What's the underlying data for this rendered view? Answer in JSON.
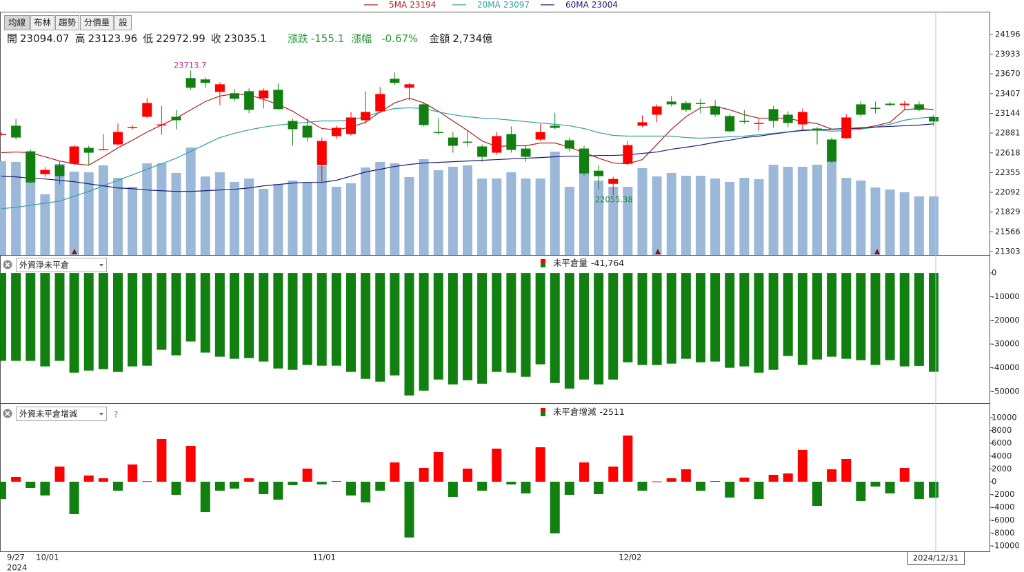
{
  "toolbar": {
    "buttons": [
      "均線",
      "布林",
      "趨勢",
      "分價量",
      "設"
    ]
  },
  "chart_data": [
    {
      "type": "candlestick",
      "categories": [
        "9/27",
        null,
        "10/01",
        null,
        null,
        null,
        null,
        null,
        null,
        null,
        null,
        null,
        null,
        null,
        null,
        null,
        null,
        null,
        null,
        null,
        null,
        "11/01",
        null,
        null,
        null,
        null,
        null,
        null,
        null,
        null,
        null,
        null,
        null,
        null,
        null,
        null,
        null,
        null,
        null,
        null,
        null,
        null,
        "12/02",
        null,
        null,
        null,
        null,
        null,
        null,
        null,
        null,
        null,
        null,
        null,
        null,
        null,
        null,
        null,
        null,
        null,
        null,
        null,
        null,
        null,
        "2024/12/31"
      ],
      "year": "2024",
      "open": [
        22860,
        22979,
        22638,
        22334,
        22454,
        22472,
        22684,
        22655,
        22730,
        22950,
        23098,
        22985,
        23098,
        23614,
        23596,
        23430,
        23412,
        23439,
        23346,
        23458,
        23043,
        22979,
        22454,
        22841,
        22868,
        23052,
        23172,
        23605,
        23485,
        23264,
        22896,
        22822,
        22767,
        22703,
        22620,
        22868,
        22675,
        22795,
        22979,
        22786,
        22675,
        22380,
        22205,
        22472,
        22979,
        23126,
        23301,
        23282,
        23282,
        23236,
        23108,
        23043,
        23006,
        23200,
        23126,
        22997,
        22942,
        22795,
        22813,
        23264,
        23218,
        23273,
        23255,
        23264,
        23094.07
      ],
      "high": [
        22890,
        23071,
        22666,
        22426,
        22500,
        22721,
        22712,
        22868,
        23006,
        22988,
        23347,
        23245,
        23190,
        23713.7,
        23623,
        23559,
        23467,
        23476,
        23476,
        23541,
        23071,
        23080,
        22822,
        22979,
        23163,
        23439,
        23494,
        23688,
        23550,
        23282,
        23080,
        22896,
        22924,
        22730,
        22896,
        22970,
        22712,
        23006,
        23153,
        22822,
        22712,
        22454,
        22298,
        22776,
        23117,
        23264,
        23375,
        23310,
        23338,
        23319,
        23135,
        23190,
        23080,
        23245,
        23172,
        23209,
        22960,
        22822,
        23135,
        23310,
        23301,
        23301,
        23310,
        23301,
        23123.96
      ],
      "low": [
        22850,
        22795,
        22215,
        22298,
        22196,
        22454,
        22454,
        22650,
        22712,
        22933,
        23080,
        22859,
        22933,
        23458,
        23485,
        23255,
        23301,
        23144,
        23209,
        23190,
        22712,
        22767,
        22224,
        22804,
        22850,
        23006,
        23144,
        23522,
        23319,
        22970,
        22859,
        22620,
        22703,
        22500,
        22592,
        22620,
        22500,
        22776,
        22933,
        22638,
        22316,
        22132,
        22055.38,
        22454,
        22960,
        23025,
        23236,
        23163,
        23144,
        23098,
        22887,
        23006,
        22914,
        22951,
        22960,
        22924,
        22730,
        22482,
        22804,
        23098,
        23144,
        23236,
        23190,
        23172,
        22972.99
      ],
      "close": [
        22870,
        22822,
        22224,
        22390,
        22307,
        22703,
        22620,
        22666,
        22896,
        22960,
        23282,
        22997,
        23052,
        23485,
        23550,
        23531,
        23338,
        23190,
        23448,
        23200,
        22933,
        22822,
        22776,
        22951,
        23089,
        23163,
        23402,
        23550,
        23531,
        22988,
        22887,
        22712,
        22758,
        22565,
        22841,
        22657,
        22565,
        22896,
        22951,
        22675,
        22344,
        22307,
        22270,
        22721,
        23025,
        23236,
        23264,
        23190,
        23273,
        23126,
        22905,
        23034,
        23016,
        23043,
        23016,
        23163,
        22914,
        22500,
        23089,
        23126,
        23209,
        23255,
        23273,
        23190.2,
        23035.1
      ],
      "volume": [
        4380,
        4347,
        4798,
        2834,
        4250,
        3896,
        3864,
        4186,
        3606,
        3188,
        4283,
        4283,
        3832,
        5023,
        3671,
        3864,
        3413,
        3574,
        3091,
        3317,
        3478,
        3413,
        4154,
        3188,
        3349,
        4089,
        4347,
        4283,
        3639,
        4476,
        3961,
        4122,
        4186,
        3574,
        3574,
        3864,
        3574,
        3574,
        4830,
        3188,
        3896,
        3478,
        3188,
        3188,
        4057,
        3671,
        3832,
        3703,
        3703,
        3574,
        3413,
        3606,
        3542,
        4218,
        4122,
        4122,
        4218,
        4508,
        3606,
        3478,
        3156,
        3059,
        2930,
        2737,
        2734
      ],
      "volume_color": "#9bb8d8",
      "up_color": "#ff0000",
      "down_color": "#118011",
      "series": [
        {
          "name": "5MA",
          "color": "#b01c1c",
          "values": [
            22620,
            22629,
            22620,
            22565,
            22509,
            22472,
            22454,
            22565,
            22684,
            22786,
            22896,
            22988,
            23080,
            23191,
            23301,
            23375,
            23403,
            23393,
            23329,
            23264,
            23172,
            23053,
            22942,
            22924,
            22961,
            23025,
            23163,
            23283,
            23347,
            23283,
            23172,
            23043,
            22915,
            22776,
            22703,
            22712,
            22712,
            22749,
            22749,
            22693,
            22620,
            22546,
            22482,
            22472,
            22528,
            22730,
            22933,
            23099,
            23218,
            23237,
            23191,
            23126,
            23080,
            23080,
            23080,
            23034,
            23007,
            22933,
            22942,
            22942,
            22979,
            23025,
            23191,
            23209,
            23194
          ]
        },
        {
          "name": "20MA",
          "color": "#2f9fa3",
          "values": [
            21874,
            21892,
            21920,
            21948,
            21975,
            22040,
            22104,
            22178,
            22252,
            22325,
            22399,
            22472,
            22546,
            22638,
            22730,
            22822,
            22878,
            22924,
            22961,
            22988,
            23007,
            23025,
            23043,
            23043,
            23053,
            23099,
            23163,
            23209,
            23218,
            23209,
            23163,
            23126,
            23099,
            23080,
            23071,
            23053,
            23034,
            23016,
            22998,
            22979,
            22942,
            22887,
            22850,
            22841,
            22841,
            22841,
            22841,
            22822,
            22813,
            22822,
            22832,
            22841,
            22859,
            22878,
            22896,
            22924,
            22924,
            22906,
            22915,
            22933,
            22961,
            22998,
            23053,
            23080,
            23097
          ]
        },
        {
          "name": "60MA",
          "color": "#1c1c78",
          "values": [
            22307,
            22298,
            22279,
            22270,
            22252,
            22233,
            22205,
            22178,
            22150,
            22141,
            22123,
            22113,
            22104,
            22104,
            22113,
            22123,
            22132,
            22150,
            22178,
            22196,
            22215,
            22224,
            22224,
            22252,
            22307,
            22362,
            22399,
            22436,
            22463,
            22482,
            22491,
            22500,
            22509,
            22518,
            22528,
            22537,
            22546,
            22555,
            22565,
            22574,
            22574,
            22583,
            22583,
            22592,
            22610,
            22629,
            22666,
            22693,
            22721,
            22758,
            22786,
            22822,
            22841,
            22868,
            22896,
            22915,
            22924,
            22933,
            22942,
            22951,
            22961,
            22970,
            22979,
            22988,
            23004
          ]
        }
      ],
      "ylim": [
        21257,
        24498
      ],
      "yticks": [
        24196,
        23933,
        23670,
        23407,
        23144,
        22881,
        22618,
        22355,
        22092,
        21829,
        21566,
        21303
      ],
      "summary": {
        "labels": [
          "開",
          "高",
          "低",
          "收",
          "漲跌",
          "漲幅",
          "金額"
        ],
        "change": -155.1,
        "change_pct": -0.67,
        "change_pct_label": "-0.67%",
        "amount": 2734,
        "amount_label": "2,734億"
      }
    },
    {
      "type": "bar",
      "selector": "外資淨未平倉",
      "legend": "未平倉量",
      "color": "#118011",
      "values": [
        -37135,
        -37135,
        -37135,
        -39474,
        -37135,
        -42106,
        -41228,
        -40643,
        -41813,
        -39474,
        -39182,
        -32459,
        -34798,
        -28950,
        -33628,
        -35382,
        -36260,
        -35967,
        -37428,
        -40351,
        -40936,
        -38890,
        -39182,
        -39182,
        -41813,
        -44737,
        -45906,
        -43275,
        -51755,
        -49708,
        -45029,
        -47076,
        -45322,
        -46784,
        -41813,
        -42106,
        -43860,
        -38596,
        -46491,
        -48830,
        -45029,
        -47076,
        -45029,
        -37720,
        -38890,
        -38890,
        -38304,
        -36260,
        -37720,
        -37428,
        -40058,
        -39474,
        -42106,
        -40936,
        -35090,
        -38890,
        -36553,
        -35382,
        -36260,
        -36845,
        -38890,
        -36845,
        -39474,
        -39253,
        -41764
      ],
      "value_labels": [
        null,
        null,
        null,
        null,
        null,
        null,
        null,
        null,
        null,
        null,
        null,
        null,
        null,
        null,
        null,
        null,
        null,
        null,
        null,
        null,
        null,
        null,
        null,
        null,
        null,
        null,
        null,
        null,
        null,
        null,
        null,
        null,
        null,
        null,
        null,
        null,
        null,
        null,
        null,
        null,
        null,
        null,
        null,
        null,
        null,
        null,
        null,
        null,
        null,
        null,
        null,
        null,
        null,
        null,
        null,
        null,
        null,
        null,
        null,
        null,
        null,
        null,
        null,
        null,
        "-41,764"
      ],
      "ylim": [
        -55000,
        7300
      ],
      "yticks": [
        0,
        -10000,
        -20000,
        -30000,
        -40000,
        -50000
      ]
    },
    {
      "type": "bar",
      "selector": "外資未平倉增減",
      "help": "?",
      "legend": "未平倉增減",
      "up_color": "#ff0000",
      "down_color": "#118011",
      "values": [
        -2688,
        752,
        -968,
        -2150,
        2365,
        -5053,
        968,
        538,
        -1398,
        2688,
        80,
        6665,
        -2043,
        5590,
        -4730,
        -1398,
        -1075,
        538,
        -1935,
        -2795,
        -538,
        2043,
        -430,
        108,
        -2150,
        -3225,
        -1398,
        3010,
        -8708,
        2150,
        4623,
        -2365,
        2043,
        -1398,
        5160,
        -430,
        -1828,
        5375,
        -8063,
        -2043,
        3010,
        -1935,
        2365,
        7203,
        -1398,
        50,
        538,
        1935,
        -1398,
        108,
        -2473,
        645,
        -2688,
        1075,
        1290,
        4945,
        -3763,
        1935,
        3548,
        -3010,
        -753,
        -1828,
        2150,
        -2688,
        -2511
      ],
      "ylim": [
        -10860,
        12040
      ],
      "yticks": [
        10000,
        8000,
        6000,
        4000,
        2000,
        0,
        -2000,
        -4000,
        -6000,
        -8000,
        -10000
      ]
    }
  ]
}
